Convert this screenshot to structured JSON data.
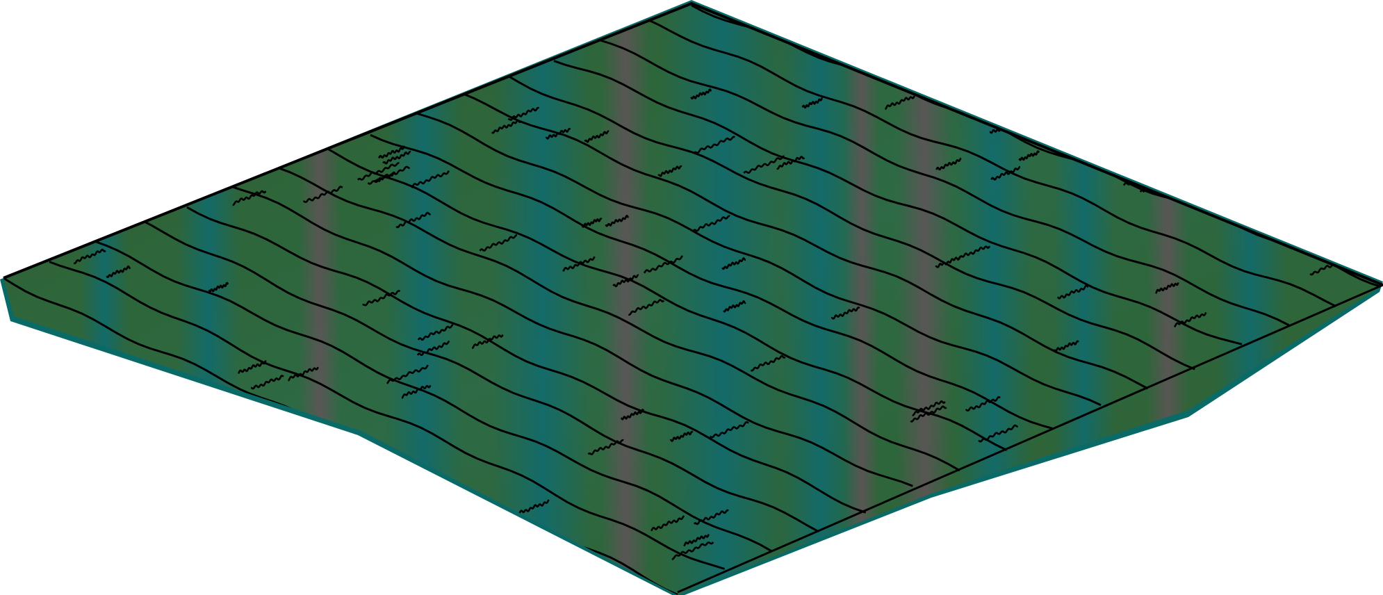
{
  "surface": {
    "kind": "terrain-mesh",
    "colors": {
      "base_green": "#2f5f2c",
      "teal": "#0f6b70",
      "mauve": "#6b4f5e",
      "blue": "#1a5a80",
      "edge": "#0a6a68",
      "line": "#000000"
    }
  }
}
